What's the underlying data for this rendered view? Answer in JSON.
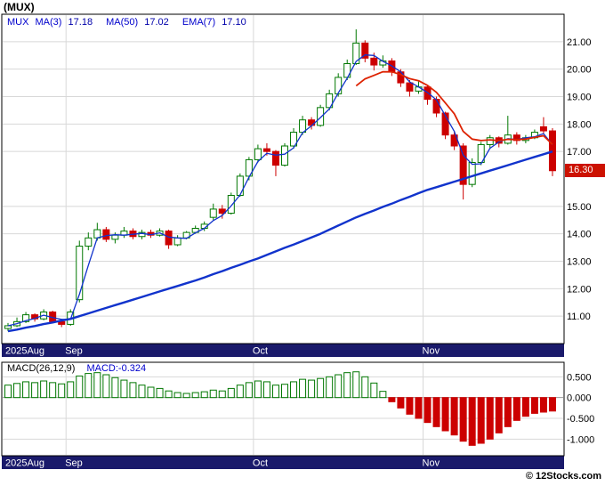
{
  "title": "(MUX)",
  "copyright": "© 12Stocks.com",
  "main_legend": {
    "items": [
      {
        "label": "MUX",
        "value": ""
      },
      {
        "label": "MA(3)",
        "value": "17.18"
      },
      {
        "label": "MA(50)",
        "value": "17.02"
      },
      {
        "label": "EMA(7)",
        "value": "17.10"
      }
    ]
  },
  "macd_legend": {
    "label": "MACD(26,12,9)",
    "value": "MACD:-0.324"
  },
  "colors": {
    "up": "#007700",
    "down": "#cc0000",
    "ma_fast": "#1133cc",
    "ma_slow": "#1133cc",
    "ema_down": "#dd2200",
    "axis_bar_bg": "#1a1a6b",
    "axis_bar_text": "#ffffff",
    "grid": "#d8d8d8",
    "zero_line": "#9a9a9a",
    "last_price_bg": "#cc1100",
    "border": "#000000",
    "legend_blue": "#0000cc"
  },
  "chart_data": {
    "type": "candlestick",
    "title": "(MUX)",
    "xlabel": "",
    "ylabel": "",
    "x_axis": {
      "labels": [
        {
          "text": "2025Aug",
          "index": 0
        },
        {
          "text": "Sep",
          "index": 7
        },
        {
          "text": "Oct",
          "index": 28
        },
        {
          "text": "Nov",
          "index": 47
        }
      ]
    },
    "main_panel": {
      "ylim": [
        10.0,
        22.0
      ],
      "yticks": [
        "21.00",
        "20.00",
        "19.00",
        "18.00",
        "17.00",
        "15.00",
        "14.00",
        "13.00",
        "12.00",
        "11.00"
      ],
      "last_price": 16.3,
      "last_price_label": "16.30",
      "ema7_red_from_index": 39,
      "candles": [
        [
          10.55,
          10.75,
          10.45,
          10.65
        ],
        [
          10.65,
          10.95,
          10.6,
          10.8
        ],
        [
          10.8,
          11.15,
          10.75,
          11.05
        ],
        [
          11.05,
          11.1,
          10.8,
          10.9
        ],
        [
          10.9,
          11.25,
          10.85,
          11.15
        ],
        [
          11.15,
          11.2,
          10.75,
          10.8
        ],
        [
          10.8,
          10.9,
          10.6,
          10.7
        ],
        [
          10.7,
          11.25,
          10.65,
          11.15
        ],
        [
          11.6,
          13.75,
          11.5,
          13.55
        ],
        [
          13.55,
          14.05,
          13.4,
          13.85
        ],
        [
          13.85,
          14.4,
          13.75,
          14.15
        ],
        [
          14.15,
          14.25,
          13.7,
          13.8
        ],
        [
          13.8,
          14.05,
          13.65,
          13.95
        ],
        [
          13.95,
          14.25,
          13.85,
          14.1
        ],
        [
          14.1,
          14.2,
          13.8,
          13.9
        ],
        [
          13.9,
          14.15,
          13.8,
          14.05
        ],
        [
          14.05,
          14.15,
          13.85,
          13.95
        ],
        [
          13.95,
          14.2,
          13.9,
          14.1
        ],
        [
          14.1,
          14.15,
          13.45,
          13.6
        ],
        [
          13.6,
          13.95,
          13.55,
          13.85
        ],
        [
          13.85,
          14.1,
          13.8,
          14.05
        ],
        [
          14.05,
          14.3,
          14.0,
          14.2
        ],
        [
          14.2,
          14.45,
          14.1,
          14.35
        ],
        [
          14.6,
          15.1,
          14.5,
          14.9
        ],
        [
          14.9,
          15.05,
          14.55,
          14.75
        ],
        [
          14.75,
          15.5,
          14.7,
          15.4
        ],
        [
          15.4,
          16.2,
          15.35,
          16.1
        ],
        [
          16.1,
          16.8,
          15.95,
          16.7
        ],
        [
          16.7,
          17.25,
          16.6,
          17.1
        ],
        [
          17.1,
          17.3,
          16.85,
          17.0
        ],
        [
          17.0,
          17.05,
          16.1,
          16.5
        ],
        [
          16.5,
          17.3,
          16.45,
          17.2
        ],
        [
          17.2,
          17.85,
          17.1,
          17.7
        ],
        [
          17.7,
          18.3,
          17.6,
          18.15
        ],
        [
          18.15,
          18.25,
          17.8,
          17.95
        ],
        [
          17.95,
          18.7,
          17.9,
          18.6
        ],
        [
          18.6,
          19.25,
          18.5,
          19.1
        ],
        [
          19.1,
          19.85,
          19.0,
          19.7
        ],
        [
          19.7,
          20.35,
          19.6,
          20.2
        ],
        [
          20.2,
          21.45,
          20.15,
          20.95
        ],
        [
          20.95,
          21.05,
          20.25,
          20.4
        ],
        [
          20.4,
          20.6,
          19.95,
          20.15
        ],
        [
          20.15,
          20.5,
          20.05,
          20.3
        ],
        [
          20.3,
          20.4,
          19.75,
          19.9
        ],
        [
          19.9,
          20.0,
          19.35,
          19.5
        ],
        [
          19.5,
          19.6,
          19.0,
          19.2
        ],
        [
          19.2,
          19.55,
          19.1,
          19.35
        ],
        [
          19.35,
          19.4,
          18.7,
          18.9
        ],
        [
          18.9,
          19.0,
          18.25,
          18.4
        ],
        [
          18.4,
          18.45,
          17.45,
          17.6
        ],
        [
          17.6,
          17.75,
          17.05,
          17.2
        ],
        [
          17.2,
          17.3,
          15.25,
          15.8
        ],
        [
          15.8,
          16.75,
          15.7,
          16.6
        ],
        [
          16.6,
          17.35,
          16.5,
          17.25
        ],
        [
          17.25,
          17.6,
          17.1,
          17.5
        ],
        [
          17.5,
          17.55,
          17.15,
          17.3
        ],
        [
          17.3,
          18.3,
          17.25,
          17.6
        ],
        [
          17.6,
          17.7,
          17.25,
          17.4
        ],
        [
          17.4,
          17.6,
          17.3,
          17.5
        ],
        [
          17.5,
          17.8,
          17.45,
          17.7
        ],
        [
          17.9,
          18.25,
          17.65,
          17.75
        ],
        [
          17.75,
          17.85,
          16.1,
          16.3
        ]
      ],
      "ma50": [
        10.45,
        10.51,
        10.58,
        10.64,
        10.71,
        10.77,
        10.84,
        10.9,
        11.0,
        11.1,
        11.2,
        11.3,
        11.4,
        11.5,
        11.6,
        11.7,
        11.8,
        11.9,
        12.0,
        12.1,
        12.2,
        12.3,
        12.41,
        12.53,
        12.64,
        12.76,
        12.87,
        12.99,
        13.1,
        13.23,
        13.36,
        13.49,
        13.61,
        13.74,
        13.87,
        14.0,
        14.15,
        14.3,
        14.45,
        14.6,
        14.73,
        14.85,
        14.98,
        15.1,
        15.23,
        15.35,
        15.48,
        15.6,
        15.7,
        15.8,
        15.9,
        16.0,
        16.1,
        16.2,
        16.3,
        16.4,
        16.5,
        16.6,
        16.7,
        16.8,
        16.9,
        17.0
      ]
    },
    "macd_panel": {
      "type": "bar",
      "ylim": [
        -1.4,
        0.85
      ],
      "yticks": [
        "0.500",
        "0.000",
        "-0.500",
        "-1.000"
      ],
      "values": [
        0.3,
        0.34,
        0.38,
        0.36,
        0.4,
        0.36,
        0.33,
        0.38,
        0.52,
        0.58,
        0.6,
        0.55,
        0.48,
        0.42,
        0.36,
        0.3,
        0.25,
        0.22,
        0.16,
        0.12,
        0.1,
        0.12,
        0.14,
        0.18,
        0.16,
        0.22,
        0.3,
        0.36,
        0.4,
        0.38,
        0.3,
        0.32,
        0.38,
        0.44,
        0.42,
        0.46,
        0.5,
        0.55,
        0.6,
        0.62,
        0.5,
        0.35,
        0.15,
        -0.1,
        -0.25,
        -0.4,
        -0.5,
        -0.6,
        -0.7,
        -0.8,
        -0.9,
        -1.05,
        -1.15,
        -1.1,
        -1.0,
        -0.85,
        -0.7,
        -0.55,
        -0.45,
        -0.38,
        -0.35,
        -0.324
      ]
    }
  }
}
